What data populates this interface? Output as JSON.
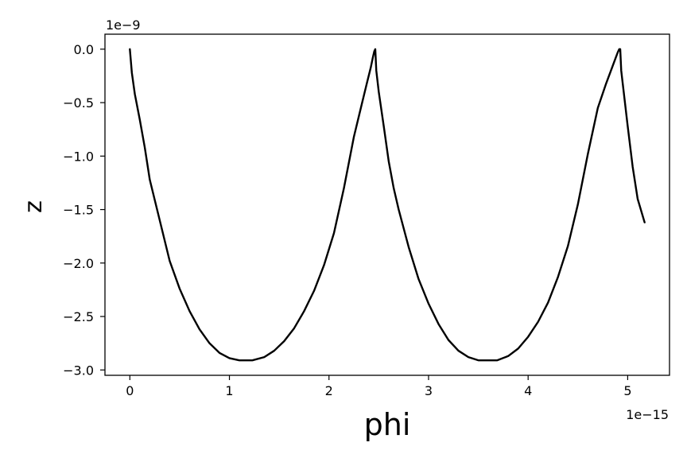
{
  "chart_data": {
    "type": "line",
    "xlabel": "phi",
    "ylabel": "z",
    "x_offset_label": "1e−15",
    "y_offset_label": "1e−9",
    "x_tick_values": [
      0,
      1,
      2,
      3,
      4,
      5
    ],
    "x_tick_labels": [
      "0",
      "1",
      "2",
      "3",
      "4",
      "5"
    ],
    "y_tick_values": [
      0.0,
      -0.5,
      -1.0,
      -1.5,
      -2.0,
      -2.5,
      -3.0
    ],
    "y_tick_labels": [
      "0.0",
      "−0.5",
      "−1.0",
      "−1.5",
      "−2.0",
      "−2.5",
      "−3.0"
    ],
    "xlim": [
      -0.25,
      5.42
    ],
    "ylim": [
      -3.05,
      0.14
    ],
    "grid": false,
    "series": [
      {
        "color": "#000000",
        "x": [
          0.0,
          0.02,
          0.05,
          0.1,
          0.15,
          0.2,
          0.3,
          0.4,
          0.5,
          0.6,
          0.7,
          0.8,
          0.9,
          1.0,
          1.1,
          1.23,
          1.35,
          1.45,
          1.55,
          1.65,
          1.75,
          1.85,
          1.95,
          2.05,
          2.15,
          2.25,
          2.32,
          2.38,
          2.42,
          2.44,
          2.455,
          2.465,
          2.475,
          2.5,
          2.55,
          2.6,
          2.65,
          2.7,
          2.8,
          2.9,
          3.0,
          3.1,
          3.2,
          3.3,
          3.4,
          3.5,
          3.6,
          3.69,
          3.8,
          3.9,
          4.0,
          4.1,
          4.2,
          4.3,
          4.4,
          4.5,
          4.6,
          4.7,
          4.78,
          4.84,
          4.88,
          4.9,
          4.915,
          4.925,
          4.935,
          4.96,
          5.0,
          5.05,
          5.1,
          5.17
        ],
        "y": [
          0.0,
          -0.22,
          -0.42,
          -0.66,
          -0.92,
          -1.22,
          -1.6,
          -1.98,
          -2.24,
          -2.45,
          -2.62,
          -2.75,
          -2.84,
          -2.89,
          -2.91,
          -2.91,
          -2.88,
          -2.82,
          -2.73,
          -2.61,
          -2.45,
          -2.26,
          -2.02,
          -1.72,
          -1.3,
          -0.82,
          -0.55,
          -0.32,
          -0.17,
          -0.08,
          -0.02,
          0.0,
          -0.2,
          -0.4,
          -0.72,
          -1.05,
          -1.3,
          -1.5,
          -1.85,
          -2.15,
          -2.38,
          -2.57,
          -2.72,
          -2.82,
          -2.88,
          -2.91,
          -2.91,
          -2.91,
          -2.87,
          -2.8,
          -2.69,
          -2.55,
          -2.37,
          -2.13,
          -1.84,
          -1.45,
          -0.98,
          -0.55,
          -0.33,
          -0.18,
          -0.08,
          -0.03,
          0.0,
          0.0,
          -0.2,
          -0.4,
          -0.72,
          -1.1,
          -1.4,
          -1.62
        ]
      }
    ]
  }
}
